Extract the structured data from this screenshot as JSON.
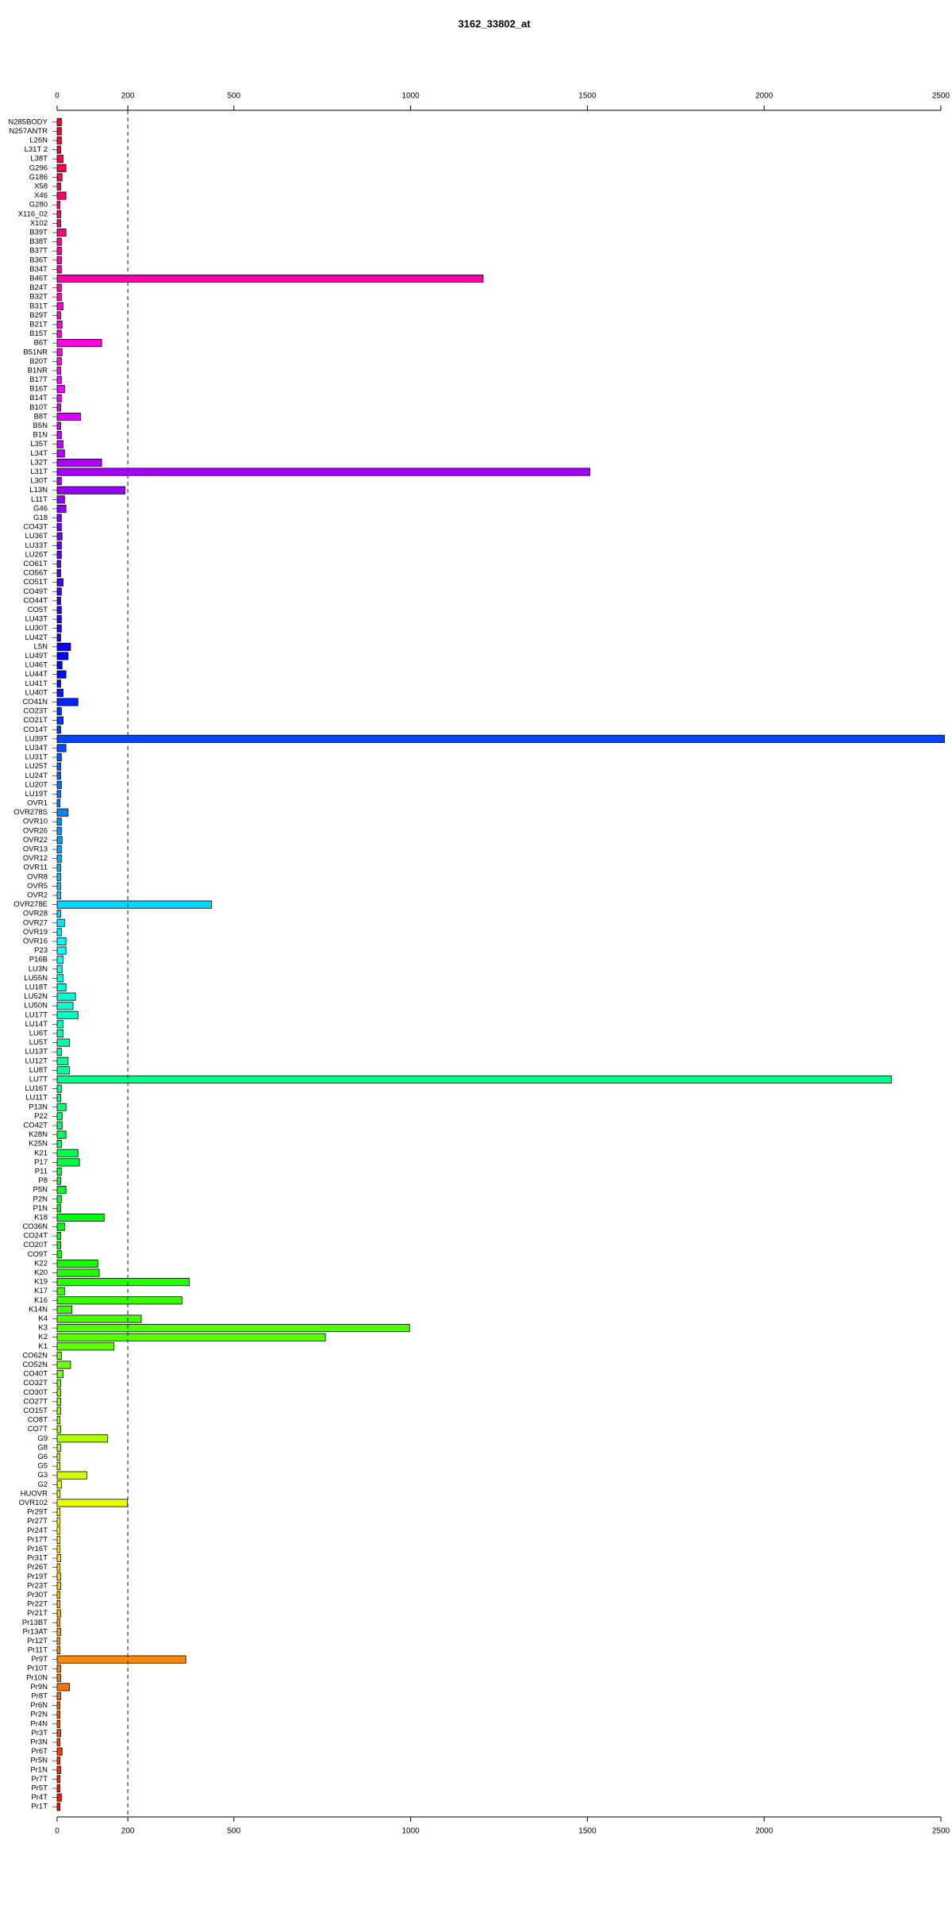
{
  "chart_data": {
    "type": "barh",
    "title": "3162_33802_at",
    "categories": [
      "N285BODY",
      "N257ANTR",
      "L26N",
      "L31T 2",
      "L38T",
      "G296",
      "G186",
      "X58",
      "X46",
      "G280",
      "X116_02",
      "X102",
      "B39T",
      "B38T",
      "B37T",
      "B36T",
      "B34T",
      "B46T",
      "B24T",
      "B32T",
      "B31T",
      "B29T",
      "B21T",
      "B15T",
      "B6T",
      "B51NR",
      "B20T",
      "B1NR",
      "B17T",
      "B16T",
      "B14T",
      "B10T",
      "B8T",
      "B5N",
      "B1N",
      "L35T",
      "L34T",
      "L32T",
      "L31T",
      "L30T",
      "L13N",
      "L11T",
      "G46",
      "G18",
      "CO43T",
      "LU36T",
      "LU33T",
      "LU26T",
      "CO61T",
      "CO56T",
      "CO51T",
      "CO49T",
      "CO44T",
      "CO5T",
      "LU43T",
      "LU30T",
      "LU42T",
      "L5N",
      "LU49T",
      "LU46T",
      "LU44T",
      "LU41T",
      "LU40T",
      "CO41N",
      "CO23T",
      "CO21T",
      "CO14T",
      "LU39T",
      "LU34T",
      "LU31T",
      "LU25T",
      "LU24T",
      "LU20T",
      "LU19T",
      "OVR1",
      "OVR278S",
      "OVR10",
      "OVR26",
      "OVR22",
      "OVR13",
      "OVR12",
      "OVR11",
      "OVR8",
      "OVR5",
      "OVR2",
      "OVR278E",
      "OVR28",
      "OVR27",
      "OVR19",
      "OVR16",
      "P23",
      "P16B",
      "LU3N",
      "LU55N",
      "LU18T",
      "LU52N",
      "LU50N",
      "LU17T",
      "LU14T",
      "LU6T",
      "LU5T",
      "LU13T",
      "LU12T",
      "LU8T",
      "LU7T",
      "LU16T",
      "LU11T",
      "P13N",
      "P22",
      "CO42T",
      "K28N",
      "K25N",
      "K21",
      "P17",
      "P11",
      "P8",
      "P5N",
      "P2N",
      "P1N",
      "K18",
      "CO36N",
      "CO24T",
      "CO20T",
      "CO9T",
      "K22",
      "K20",
      "K19",
      "K17",
      "K16",
      "K14N",
      "K4",
      "K3",
      "K2",
      "K1",
      "CO62N",
      "CO52N",
      "CO40T",
      "CO32T",
      "CO30T",
      "CO27T",
      "CO15T",
      "CO8T",
      "CO7T",
      "G9",
      "G8",
      "G6",
      "G5",
      "G3",
      "G2",
      "HUOVR",
      "OVR102",
      "Pr29T",
      "Pr27T",
      "Pr24T",
      "Pr17T",
      "Pr16T",
      "Pr31T",
      "Pr26T",
      "Pr19T",
      "Pr23T",
      "Pr30T",
      "Pr22T",
      "Pr21T",
      "Pr13BT",
      "Pr13AT",
      "Pr12T",
      "Pr11T",
      "Pr9T",
      "Pr10T",
      "Pr10N",
      "Pr9N",
      "Pr8T",
      "Pr6N",
      "Pr2N",
      "Pr4N",
      "Pr3T",
      "Pr3N",
      "Pr6T",
      "Pr5N",
      "Pr1N",
      "Pr7T",
      "Pr5T",
      "Pr4T",
      "Pr1T"
    ],
    "values": [
      12,
      12,
      12,
      10,
      17,
      25,
      14,
      10,
      25,
      8,
      10,
      10,
      25,
      12,
      12,
      12,
      12,
      1205,
      12,
      12,
      17,
      10,
      14,
      12,
      126,
      14,
      12,
      10,
      12,
      21,
      12,
      10,
      66,
      10,
      12,
      17,
      21,
      126,
      1507,
      12,
      192,
      21,
      25,
      12,
      12,
      14,
      12,
      12,
      10,
      10,
      17,
      12,
      10,
      12,
      12,
      12,
      10,
      38,
      31,
      14,
      25,
      10,
      17,
      59,
      12,
      17,
      10,
      2510,
      25,
      12,
      10,
      10,
      12,
      10,
      8,
      31,
      12,
      12,
      14,
      12,
      12,
      10,
      10,
      10,
      10,
      437,
      10,
      21,
      12,
      25,
      25,
      17,
      14,
      17,
      25,
      52,
      45,
      59,
      17,
      17,
      35,
      12,
      31,
      35,
      2360,
      12,
      10,
      25,
      14,
      14,
      25,
      12,
      59,
      63,
      12,
      10,
      25,
      12,
      10,
      133,
      21,
      10,
      10,
      12,
      115,
      119,
      374,
      21,
      353,
      42,
      238,
      997,
      759,
      161,
      12,
      38,
      17,
      10,
      10,
      10,
      10,
      8,
      10,
      143,
      10,
      8,
      8,
      84,
      12,
      8,
      199,
      8,
      8,
      8,
      8,
      8,
      10,
      8,
      10,
      10,
      8,
      8,
      10,
      8,
      10,
      8,
      8,
      364,
      10,
      10,
      35,
      10,
      8,
      8,
      8,
      10,
      8,
      14,
      8,
      10,
      8,
      8,
      12,
      8
    ],
    "color_scheme": "rainbow",
    "xlim": [
      0,
      2500
    ],
    "xticks": [
      0,
      200,
      500,
      1000,
      1500,
      2000,
      2500
    ],
    "vline": 200
  }
}
